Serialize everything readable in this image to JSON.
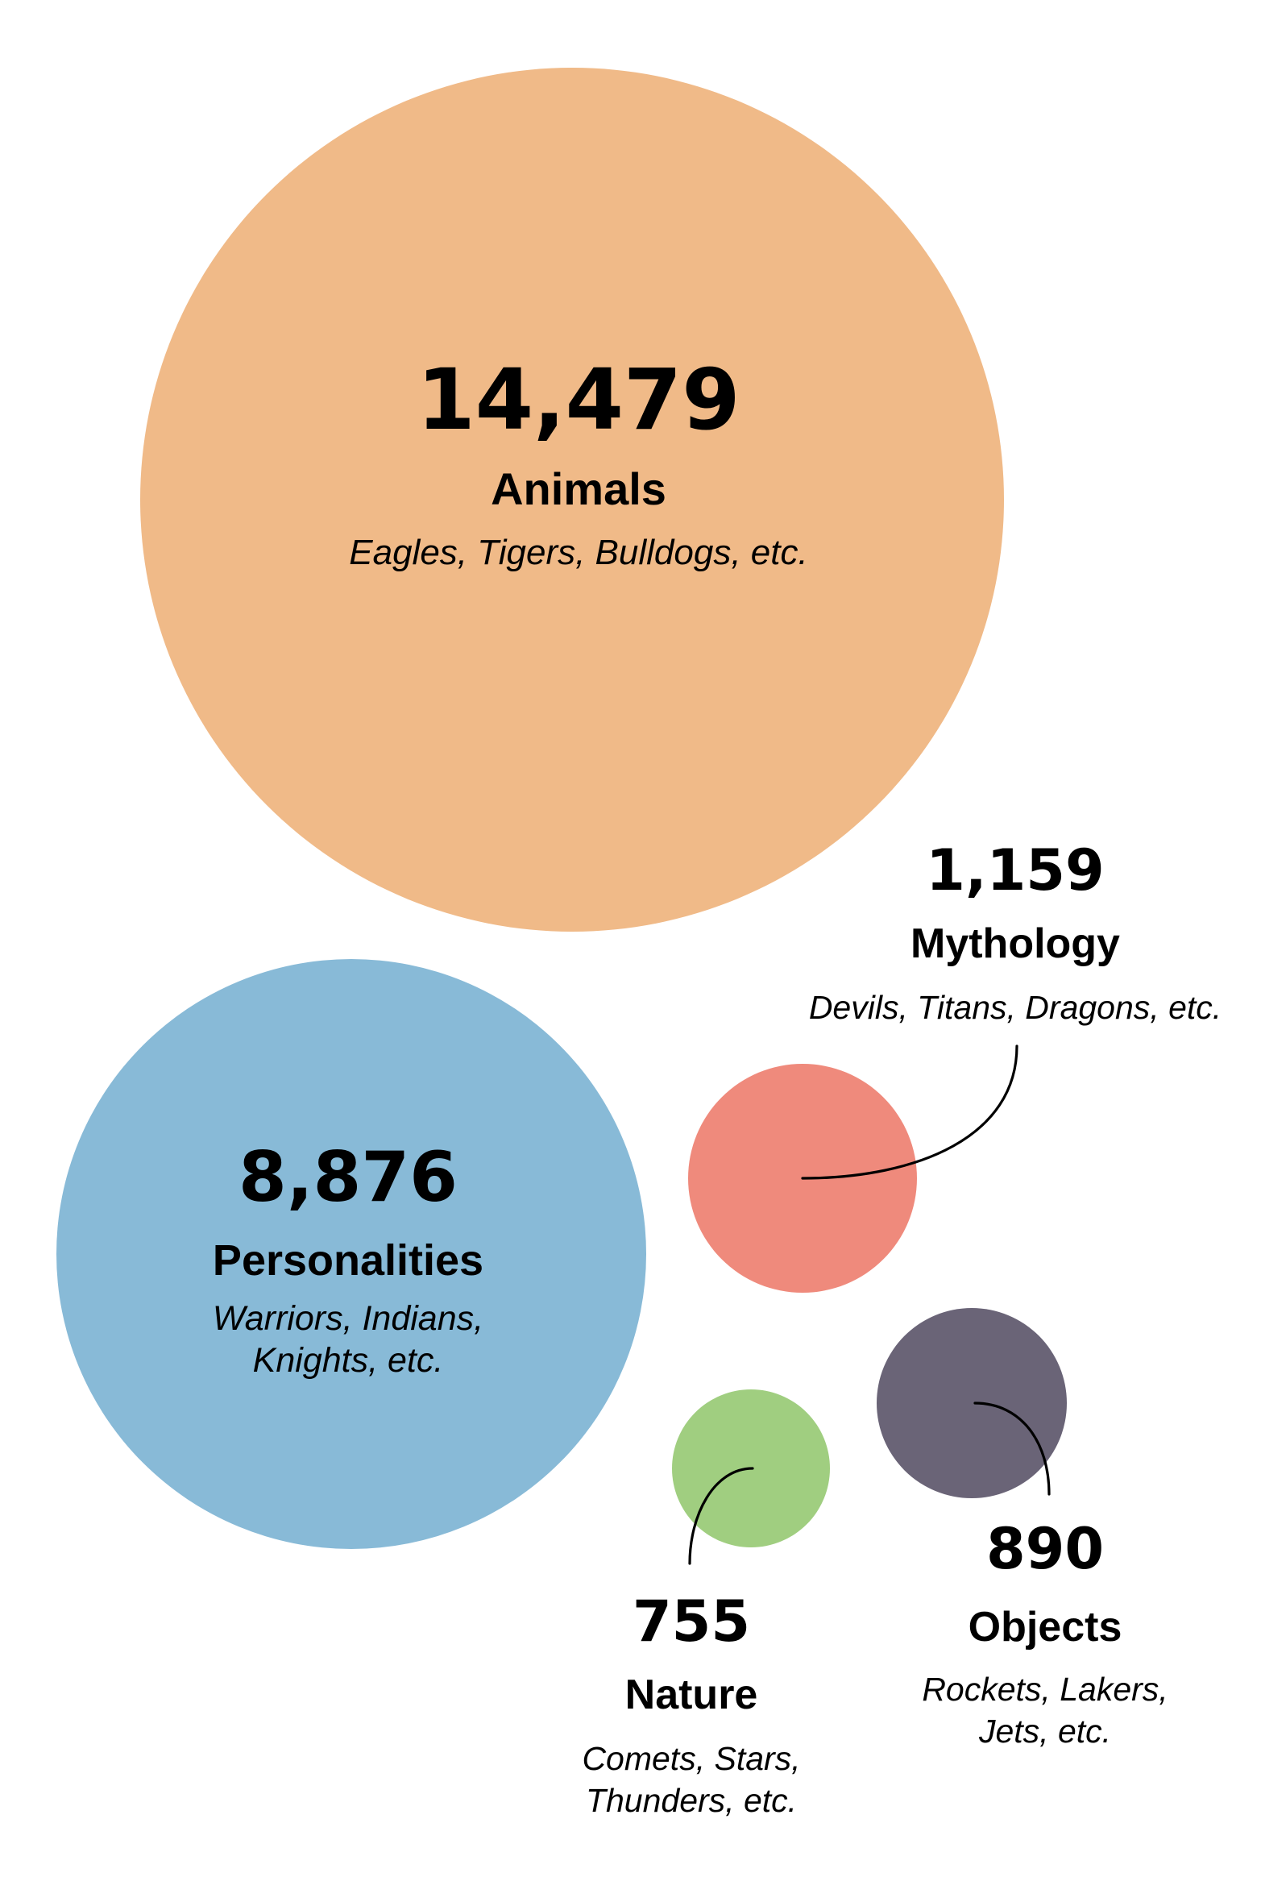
{
  "chart_data": {
    "type": "bubble",
    "title": "",
    "series": [
      {
        "value": 14479,
        "value_label": "14,479",
        "category": "Animals",
        "examples": [
          "Eagles, Tigers, Bulldogs, etc."
        ],
        "color": "#F0BA88",
        "label_placement": "inside"
      },
      {
        "value": 8876,
        "value_label": "8,876",
        "category": "Personalities",
        "examples": [
          "Warriors, Indians,",
          "Knights, etc."
        ],
        "color": "#88BAD7",
        "label_placement": "inside"
      },
      {
        "value": 1159,
        "value_label": "1,159",
        "category": "Mythology",
        "examples": [
          "Devils, Titans, Dragons, etc."
        ],
        "color": "#EF8A7C",
        "label_placement": "outside"
      },
      {
        "value": 890,
        "value_label": "890",
        "category": "Objects",
        "examples": [
          "Rockets, Lakers,",
          "Jets, etc."
        ],
        "color": "#6A6477",
        "label_placement": "outside"
      },
      {
        "value": 755,
        "value_label": "755",
        "category": "Nature",
        "examples": [
          "Comets, Stars,",
          "Thunders, etc."
        ],
        "color": "#A0CE80",
        "label_placement": "outside"
      }
    ]
  }
}
